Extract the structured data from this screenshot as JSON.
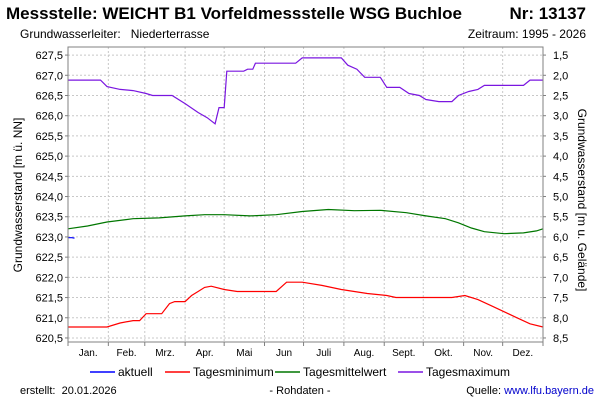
{
  "header": {
    "title": "Messstelle: WEICHT B1 Vorfeldmessstelle WSG Buchloe",
    "nr": "Nr: 13137",
    "aquifer_label": "Grundwasserleiter:",
    "aquifer_value": "Niederterrasse",
    "period": "Zeitraum: 1995 - 2026"
  },
  "footer": {
    "created_label": "erstellt:",
    "created_date": "20.01.2026",
    "center": "- Rohdaten -",
    "source_label": "Quelle:",
    "source_link": "www.lfu.bayern.de"
  },
  "colors": {
    "aktuell": "#0000ff",
    "tagesminimum": "#ff0000",
    "tagesmittelwert": "#007700",
    "tagesmaximum": "#7a16e0"
  },
  "chart_data": {
    "type": "line",
    "xlabel": "",
    "ylabel": "Grundwasserstand [m ü. NN]",
    "ylabel_right": "Grundwasserstand [m u. Gelände]",
    "categories": [
      "Jan.",
      "Feb.",
      "Mrz.",
      "Apr.",
      "Mai",
      "Jun",
      "Juli",
      "Aug.",
      "Sept.",
      "Okt.",
      "Nov.",
      "Dez."
    ],
    "xlim_days": [
      0,
      365
    ],
    "ylim": [
      620.4,
      627.7
    ],
    "yticks": [
      "620,5",
      "621,0",
      "621,5",
      "622,0",
      "622,5",
      "623,0",
      "623,5",
      "624,0",
      "624,5",
      "625,0",
      "625,5",
      "626,0",
      "626,5",
      "627,0",
      "627,5"
    ],
    "yticks_right": [
      "1,5",
      "2,0",
      "2,5",
      "3,0",
      "3,5",
      "4,0",
      "4,5",
      "5,0",
      "5,5",
      "6,0",
      "6,5",
      "7,0",
      "7,5",
      "8,0",
      "8,5"
    ],
    "grid": true,
    "legend_position": "bottom",
    "series": [
      {
        "name": "aktuell",
        "points": [
          [
            0,
            622.98
          ],
          [
            3,
            622.98
          ],
          [
            5,
            622.97
          ]
        ]
      },
      {
        "name": "Tagesminimum",
        "points": [
          [
            0,
            620.77
          ],
          [
            30,
            620.77
          ],
          [
            40,
            620.87
          ],
          [
            50,
            620.93
          ],
          [
            55,
            620.93
          ],
          [
            60,
            621.1
          ],
          [
            72,
            621.1
          ],
          [
            78,
            621.35
          ],
          [
            82,
            621.4
          ],
          [
            90,
            621.4
          ],
          [
            95,
            621.55
          ],
          [
            100,
            621.65
          ],
          [
            105,
            621.75
          ],
          [
            110,
            621.78
          ],
          [
            120,
            621.7
          ],
          [
            130,
            621.65
          ],
          [
            160,
            621.65
          ],
          [
            168,
            621.88
          ],
          [
            180,
            621.88
          ],
          [
            195,
            621.8
          ],
          [
            210,
            621.7
          ],
          [
            230,
            621.6
          ],
          [
            245,
            621.55
          ],
          [
            252,
            621.5
          ],
          [
            295,
            621.5
          ],
          [
            305,
            621.55
          ],
          [
            315,
            621.45
          ],
          [
            325,
            621.3
          ],
          [
            335,
            621.15
          ],
          [
            345,
            621.0
          ],
          [
            355,
            620.85
          ],
          [
            365,
            620.77
          ]
        ]
      },
      {
        "name": "Tagesmittelwert",
        "points": [
          [
            0,
            623.2
          ],
          [
            15,
            623.27
          ],
          [
            30,
            623.37
          ],
          [
            50,
            623.45
          ],
          [
            70,
            623.47
          ],
          [
            90,
            623.52
          ],
          [
            105,
            623.55
          ],
          [
            120,
            623.55
          ],
          [
            140,
            623.52
          ],
          [
            160,
            623.55
          ],
          [
            180,
            623.63
          ],
          [
            200,
            623.68
          ],
          [
            220,
            623.65
          ],
          [
            240,
            623.66
          ],
          [
            260,
            623.6
          ],
          [
            275,
            623.52
          ],
          [
            290,
            623.45
          ],
          [
            300,
            623.35
          ],
          [
            310,
            623.22
          ],
          [
            320,
            623.13
          ],
          [
            335,
            623.08
          ],
          [
            350,
            623.1
          ],
          [
            360,
            623.15
          ],
          [
            365,
            623.2
          ]
        ]
      },
      {
        "name": "Tagesmaximum",
        "points": [
          [
            0,
            626.88
          ],
          [
            25,
            626.88
          ],
          [
            30,
            626.72
          ],
          [
            40,
            626.65
          ],
          [
            50,
            626.62
          ],
          [
            60,
            626.55
          ],
          [
            65,
            626.5
          ],
          [
            80,
            626.5
          ],
          [
            90,
            626.3
          ],
          [
            100,
            626.08
          ],
          [
            107,
            625.95
          ],
          [
            113,
            625.8
          ],
          [
            116,
            626.2
          ],
          [
            120,
            626.2
          ],
          [
            122,
            627.1
          ],
          [
            135,
            627.1
          ],
          [
            138,
            627.15
          ],
          [
            142,
            627.15
          ],
          [
            144,
            627.3
          ],
          [
            175,
            627.3
          ],
          [
            180,
            627.43
          ],
          [
            210,
            627.43
          ],
          [
            215,
            627.25
          ],
          [
            222,
            627.15
          ],
          [
            228,
            626.95
          ],
          [
            240,
            626.95
          ],
          [
            245,
            626.7
          ],
          [
            255,
            626.7
          ],
          [
            262,
            626.55
          ],
          [
            270,
            626.5
          ],
          [
            275,
            626.4
          ],
          [
            285,
            626.35
          ],
          [
            295,
            626.35
          ],
          [
            300,
            626.5
          ],
          [
            308,
            626.6
          ],
          [
            315,
            626.65
          ],
          [
            320,
            626.75
          ],
          [
            350,
            626.75
          ],
          [
            355,
            626.88
          ],
          [
            365,
            626.88
          ]
        ]
      }
    ]
  }
}
